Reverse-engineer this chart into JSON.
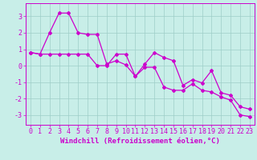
{
  "line1_x": [
    0,
    1,
    2,
    3,
    4,
    5,
    6,
    7,
    8,
    9,
    10,
    11,
    12,
    13,
    14,
    15,
    16,
    17,
    18,
    19,
    20,
    21,
    22,
    23
  ],
  "line1_y": [
    0.8,
    0.7,
    2.0,
    3.2,
    3.2,
    2.0,
    1.9,
    1.9,
    0.1,
    0.3,
    0.05,
    -0.65,
    0.1,
    0.8,
    0.5,
    0.3,
    -1.2,
    -0.85,
    -1.05,
    -0.3,
    -1.65,
    -1.8,
    -2.5,
    -2.65
  ],
  "line2_x": [
    0,
    1,
    2,
    3,
    4,
    5,
    6,
    7,
    8,
    9,
    10,
    11,
    12,
    13,
    14,
    15,
    16,
    17,
    18,
    19,
    20,
    21,
    22,
    23
  ],
  "line2_y": [
    0.8,
    0.7,
    0.7,
    0.7,
    0.7,
    0.7,
    0.7,
    0.0,
    0.0,
    0.7,
    0.7,
    -0.65,
    -0.1,
    -0.1,
    -1.3,
    -1.5,
    -1.5,
    -1.1,
    -1.5,
    -1.6,
    -1.9,
    -2.1,
    -3.0,
    -3.1
  ],
  "line_color": "#cc00cc",
  "bg_color": "#c8eee8",
  "grid_color": "#9ecec8",
  "xlabel": "Windchill (Refroidissement éolien,°C)",
  "xlim": [
    -0.5,
    23.5
  ],
  "ylim": [
    -3.6,
    3.8
  ],
  "yticks": [
    -3,
    -2,
    -1,
    0,
    1,
    2,
    3
  ],
  "xticks": [
    0,
    1,
    2,
    3,
    4,
    5,
    6,
    7,
    8,
    9,
    10,
    11,
    12,
    13,
    14,
    15,
    16,
    17,
    18,
    19,
    20,
    21,
    22,
    23
  ],
  "xlabel_fontsize": 6.5,
  "tick_fontsize": 6.0,
  "marker": "D",
  "markersize": 2.0,
  "linewidth": 0.9
}
